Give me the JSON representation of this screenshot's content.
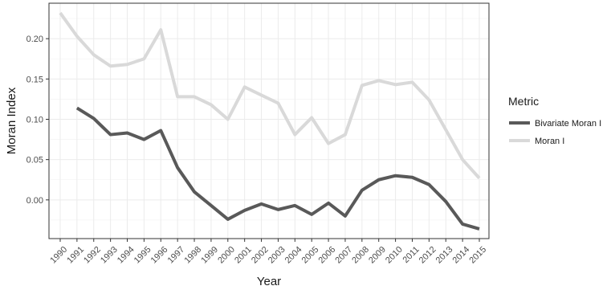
{
  "chart_data": {
    "type": "line",
    "title": "",
    "xlabel": "Year",
    "ylabel": "Moran Index",
    "ylim": [
      -0.048,
      0.244
    ],
    "yticks": [
      0.0,
      0.05,
      0.1,
      0.15,
      0.2
    ],
    "ytick_labels": [
      "0.00",
      "0.05",
      "0.10",
      "0.15",
      "0.20"
    ],
    "x": [
      "1990",
      "1991",
      "1992",
      "1993",
      "1994",
      "1995",
      "1996",
      "1997",
      "1998",
      "1999",
      "2000",
      "2001",
      "2002",
      "2003",
      "2004",
      "2005",
      "2006",
      "2007",
      "2008",
      "2009",
      "2010",
      "2011",
      "2012",
      "2013",
      "2014",
      "2015"
    ],
    "grid": true,
    "legend": {
      "title": "Metric",
      "position": "right"
    },
    "series": [
      {
        "name": "Bivariate Moran I",
        "color": "#595959",
        "values": [
          null,
          0.114,
          0.101,
          0.081,
          0.083,
          0.075,
          0.086,
          0.04,
          0.01,
          -0.007,
          -0.024,
          -0.013,
          -0.005,
          -0.012,
          -0.007,
          -0.018,
          -0.004,
          -0.02,
          0.012,
          0.025,
          0.03,
          0.028,
          0.019,
          -0.002,
          -0.03,
          -0.036
        ]
      },
      {
        "name": "Moran I",
        "color": "#d9d9d9",
        "values": [
          0.232,
          0.203,
          0.18,
          0.166,
          0.168,
          0.175,
          0.211,
          0.128,
          0.128,
          0.118,
          0.1,
          0.14,
          0.13,
          0.12,
          0.081,
          0.102,
          0.07,
          0.081,
          0.142,
          0.148,
          0.143,
          0.146,
          0.124,
          0.087,
          0.05,
          0.027
        ]
      }
    ]
  }
}
